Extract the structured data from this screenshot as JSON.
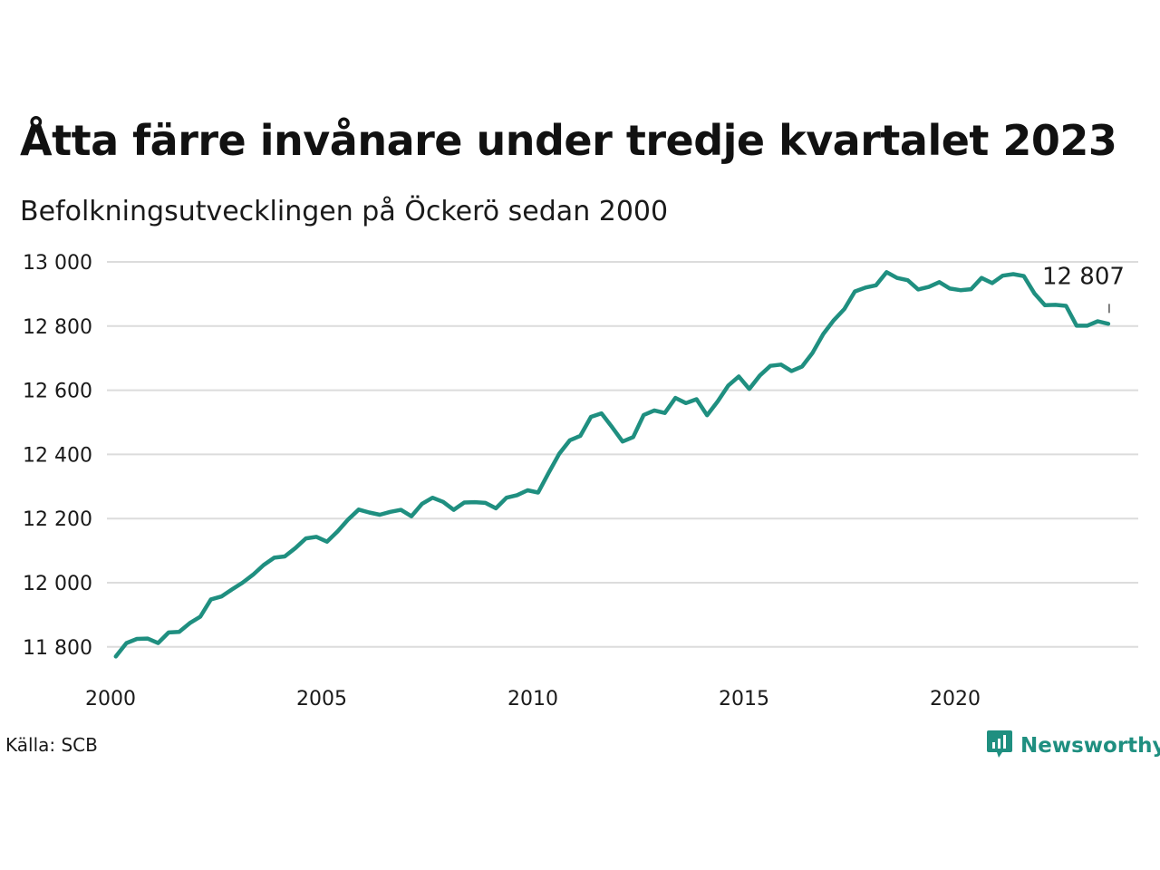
{
  "title": "Åtta färre invånare under tredje kvartalet 2023",
  "subtitle": "Befolkningsutvecklingen på Öckerö sedan 2000",
  "source": "Källa: SCB",
  "brand": {
    "name": "Newsworthy",
    "icon": "newsworthy-logo-icon",
    "color": "#1f8f80"
  },
  "chart_data": {
    "type": "line",
    "title": "Åtta färre invånare under tredje kvartalet 2023",
    "subtitle": "Befolkningsutvecklingen på Öckerö sedan 2000",
    "xlabel": "",
    "ylabel": "",
    "x_ticks": [
      "2000",
      "2005",
      "2010",
      "2015",
      "2020"
    ],
    "y_ticks": [
      "11 800",
      "12 000",
      "12 200",
      "12 400",
      "12 600",
      "12 800",
      "13 000"
    ],
    "ylim": [
      11700,
      13000
    ],
    "xlim": [
      2000,
      2024.5
    ],
    "grid": "horizontal",
    "line_color": "#1f8f80",
    "end_label": "12 807",
    "series": [
      {
        "x": [
          "2000-Q1",
          "2000-Q2",
          "2000-Q3",
          "2000-Q4",
          "2001-Q1",
          "2001-Q2",
          "2001-Q3",
          "2001-Q4",
          "2002-Q1",
          "2002-Q2",
          "2002-Q3",
          "2002-Q4",
          "2003-Q1",
          "2003-Q2",
          "2003-Q3",
          "2003-Q4",
          "2004-Q1",
          "2004-Q2",
          "2004-Q3",
          "2004-Q4",
          "2005-Q1",
          "2005-Q2",
          "2005-Q3",
          "2005-Q4",
          "2006-Q1",
          "2006-Q2",
          "2006-Q3",
          "2006-Q4",
          "2007-Q1",
          "2007-Q2",
          "2007-Q3",
          "2007-Q4",
          "2008-Q1",
          "2008-Q2",
          "2008-Q3",
          "2008-Q4",
          "2009-Q1",
          "2009-Q2",
          "2009-Q3",
          "2009-Q4",
          "2010-Q1",
          "2010-Q2",
          "2010-Q3",
          "2010-Q4",
          "2011-Q1",
          "2011-Q2",
          "2011-Q3",
          "2011-Q4",
          "2012-Q1",
          "2012-Q2",
          "2012-Q3",
          "2012-Q4",
          "2013-Q1",
          "2013-Q2",
          "2013-Q3",
          "2013-Q4",
          "2014-Q1",
          "2014-Q2",
          "2014-Q3",
          "2014-Q4",
          "2015-Q1",
          "2015-Q2",
          "2015-Q3",
          "2015-Q4",
          "2016-Q1",
          "2016-Q2",
          "2016-Q3",
          "2016-Q4",
          "2017-Q1",
          "2017-Q2",
          "2017-Q3",
          "2017-Q4",
          "2018-Q1",
          "2018-Q2",
          "2018-Q3",
          "2018-Q4",
          "2019-Q1",
          "2019-Q2",
          "2019-Q3",
          "2019-Q4",
          "2020-Q1",
          "2020-Q2",
          "2020-Q3",
          "2020-Q4",
          "2021-Q1",
          "2021-Q2",
          "2021-Q3",
          "2021-Q4",
          "2022-Q1",
          "2022-Q2",
          "2022-Q3",
          "2022-Q4",
          "2023-Q1",
          "2023-Q2",
          "2023-Q3"
        ],
        "values": [
          11770,
          11812,
          11825,
          11826,
          11812,
          11845,
          11847,
          11874,
          11894,
          11948,
          11957,
          11979,
          12000,
          12025,
          12055,
          12078,
          12082,
          12108,
          12138,
          12143,
          12128,
          12160,
          12197,
          12228,
          12219,
          12212,
          12221,
          12227,
          12207,
          12246,
          12265,
          12252,
          12227,
          12250,
          12251,
          12249,
          12232,
          12265,
          12273,
          12288,
          12281,
          12343,
          12402,
          12444,
          12458,
          12517,
          12528,
          12485,
          12440,
          12454,
          12523,
          12537,
          12529,
          12576,
          12560,
          12572,
          12522,
          12565,
          12614,
          12643,
          12604,
          12646,
          12676,
          12680,
          12660,
          12674,
          12717,
          12775,
          12818,
          12853,
          12908,
          12920,
          12927,
          12968,
          12950,
          12943,
          12914,
          12922,
          12937,
          12917,
          12912,
          12915,
          12950,
          12934,
          12957,
          12962,
          12956,
          12902,
          12865,
          12866,
          12863,
          12801,
          12801,
          12815,
          12807
        ]
      }
    ]
  }
}
